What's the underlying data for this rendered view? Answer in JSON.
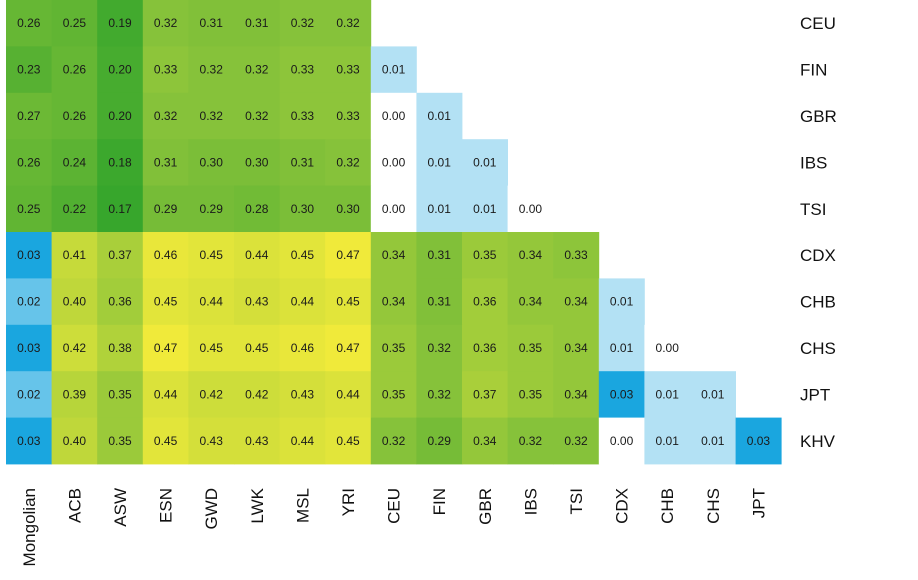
{
  "chart_data": {
    "type": "heatmap",
    "title": "",
    "xlabel": "",
    "ylabel": "",
    "columns": [
      "Mongolian",
      "ACB",
      "ASW",
      "ESN",
      "GWD",
      "LWK",
      "MSL",
      "YRI",
      "CEU",
      "FIN",
      "GBR",
      "IBS",
      "TSI",
      "CDX",
      "CHB",
      "CHS",
      "JPT"
    ],
    "rows": [
      "CEU",
      "FIN",
      "GBR",
      "IBS",
      "TSI",
      "CDX",
      "CHB",
      "CHS",
      "JPT",
      "KHV"
    ],
    "cells": [
      [
        "0.26",
        "0.25",
        "0.19",
        "0.32",
        "0.31",
        "0.31",
        "0.32",
        "0.32",
        null,
        null,
        null,
        null,
        null,
        null,
        null,
        null,
        null
      ],
      [
        "0.23",
        "0.26",
        "0.20",
        "0.33",
        "0.32",
        "0.32",
        "0.33",
        "0.33",
        "0.01",
        null,
        null,
        null,
        null,
        null,
        null,
        null,
        null
      ],
      [
        "0.27",
        "0.26",
        "0.20",
        "0.32",
        "0.32",
        "0.32",
        "0.33",
        "0.33",
        "0.00",
        "0.01",
        null,
        null,
        null,
        null,
        null,
        null,
        null
      ],
      [
        "0.26",
        "0.24",
        "0.18",
        "0.31",
        "0.30",
        "0.30",
        "0.31",
        "0.32",
        "0.00",
        "0.01",
        "0.01",
        null,
        null,
        null,
        null,
        null,
        null
      ],
      [
        "0.25",
        "0.22",
        "0.17",
        "0.29",
        "0.29",
        "0.28",
        "0.30",
        "0.30",
        "0.00",
        "0.01",
        "0.01",
        "0.00",
        null,
        null,
        null,
        null,
        null
      ],
      [
        "0.03",
        "0.41",
        "0.37",
        "0.46",
        "0.45",
        "0.44",
        "0.45",
        "0.47",
        "0.34",
        "0.31",
        "0.35",
        "0.34",
        "0.33",
        null,
        null,
        null,
        null
      ],
      [
        "0.02",
        "0.40",
        "0.36",
        "0.45",
        "0.44",
        "0.43",
        "0.44",
        "0.45",
        "0.34",
        "0.31",
        "0.36",
        "0.34",
        "0.34",
        "0.01",
        null,
        null,
        null
      ],
      [
        "0.03",
        "0.42",
        "0.38",
        "0.47",
        "0.45",
        "0.45",
        "0.46",
        "0.47",
        "0.35",
        "0.32",
        "0.36",
        "0.35",
        "0.34",
        "0.01",
        "0.00",
        null,
        null
      ],
      [
        "0.02",
        "0.39",
        "0.35",
        "0.44",
        "0.42",
        "0.42",
        "0.43",
        "0.44",
        "0.35",
        "0.32",
        "0.37",
        "0.35",
        "0.34",
        "0.03",
        "0.01",
        "0.01",
        null
      ],
      [
        "0.03",
        "0.40",
        "0.35",
        "0.45",
        "0.43",
        "0.43",
        "0.44",
        "0.45",
        "0.32",
        "0.29",
        "0.34",
        "0.32",
        "0.32",
        "0.00",
        "0.01",
        "0.01",
        "0.03"
      ]
    ],
    "grid": false,
    "legend": "none",
    "color_scale": {
      "low": "#ffffff",
      "blue": "#1aa6df",
      "green": "#3faa2f",
      "yellow": "#f0ea3a"
    }
  }
}
